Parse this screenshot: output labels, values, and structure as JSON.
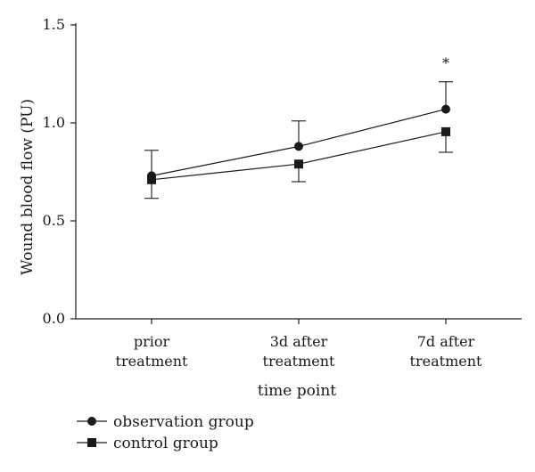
{
  "chart_data": {
    "type": "line",
    "categories": [
      [
        "prior",
        "treatment"
      ],
      [
        "3d after",
        "treatment"
      ],
      [
        "7d after",
        "treatment"
      ]
    ],
    "ylabel": "Wound blood flow (PU)",
    "xlabel": "time point",
    "ylim": [
      0,
      1.5
    ],
    "y_ticks": [
      "0.0",
      "0.5",
      "1.0",
      "1.5"
    ],
    "grid": false,
    "legend_position": "bottom-left",
    "series": [
      {
        "name": "observation group",
        "marker": "circle",
        "values": [
          0.73,
          0.88,
          1.07
        ],
        "error": [
          0.13,
          0.13,
          0.14
        ],
        "error_side": "up"
      },
      {
        "name": "control group",
        "marker": "square",
        "values": [
          0.71,
          0.79,
          0.955
        ],
        "error": [
          0.095,
          0.09,
          0.105
        ],
        "error_side": "down"
      }
    ],
    "annotations": [
      {
        "category_index": 2,
        "value": 1.28,
        "text": "*"
      }
    ]
  }
}
